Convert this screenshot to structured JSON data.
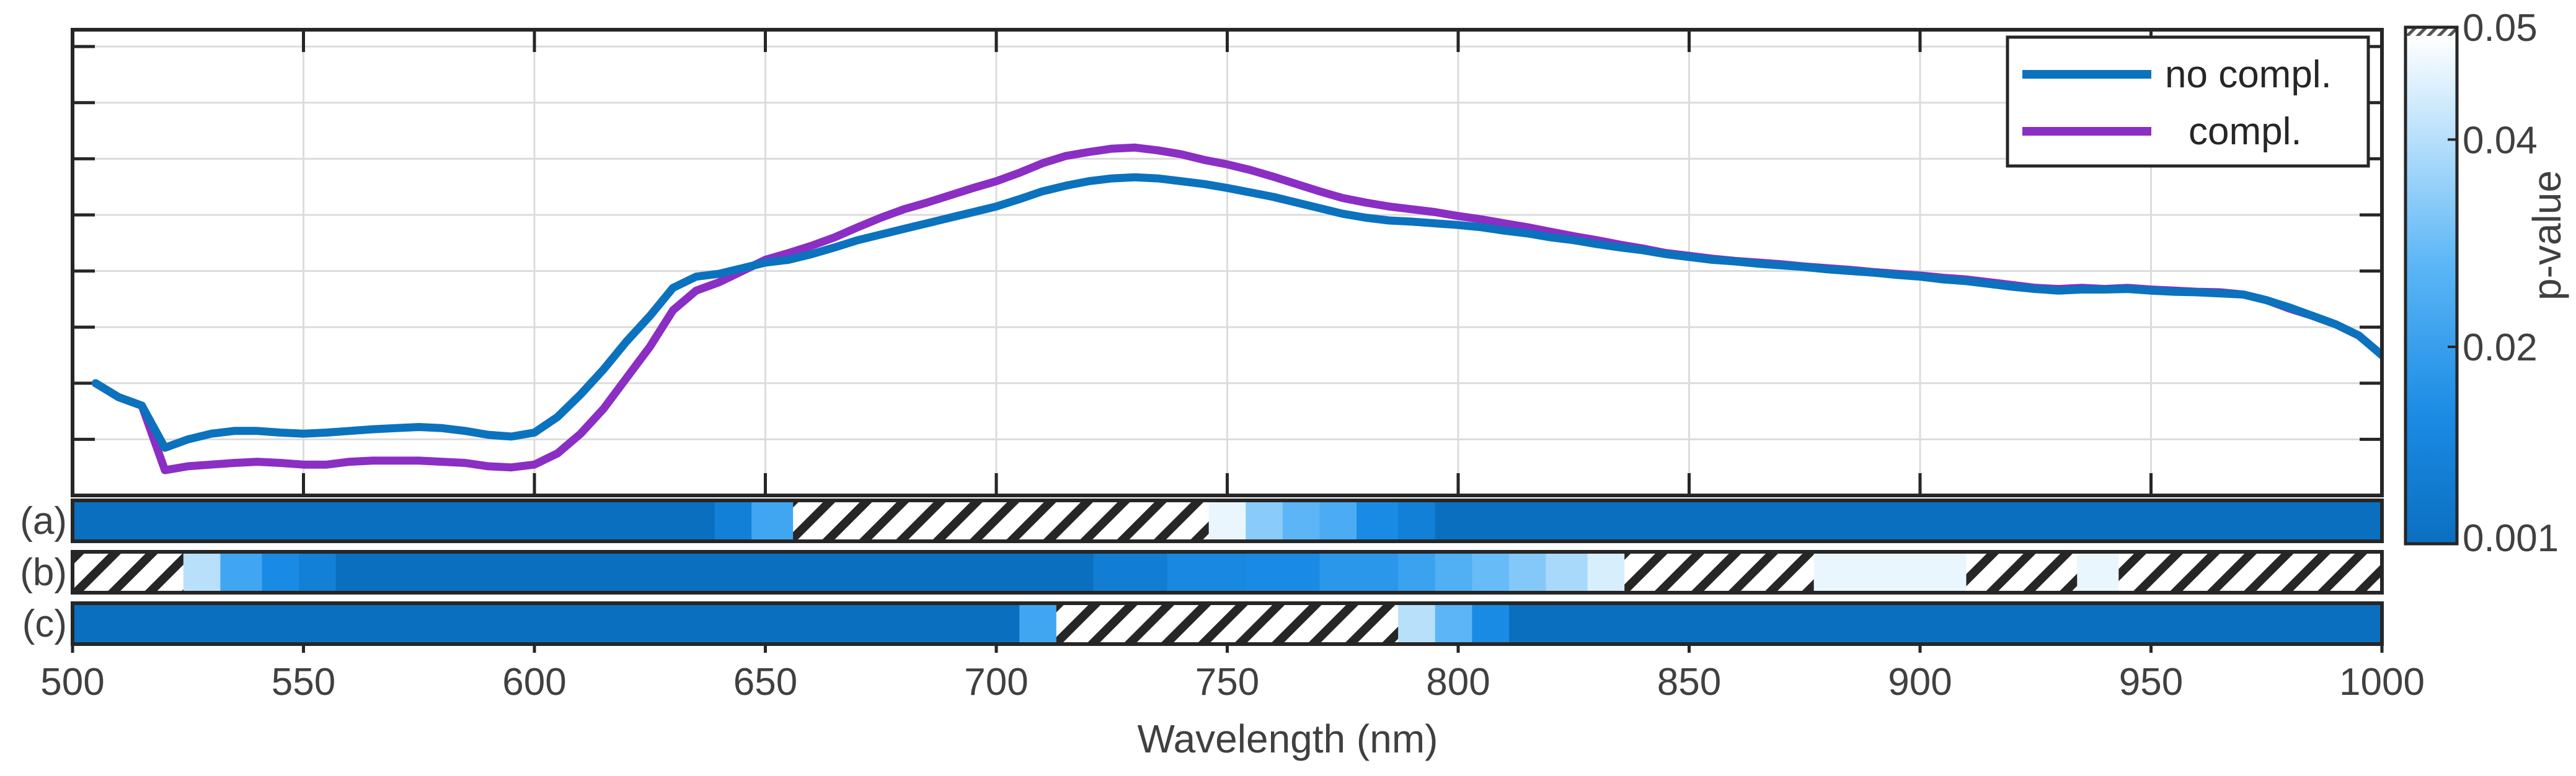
{
  "chart_data": {
    "type": "line",
    "title": "",
    "xlabel": "Wavelength (nm)",
    "ylabel": "",
    "xlim": [
      500,
      1000
    ],
    "ylim": [
      0,
      8.3
    ],
    "grid": true,
    "x_ticks": [
      "500",
      "550",
      "600",
      "650",
      "700",
      "750",
      "800",
      "850",
      "900",
      "950",
      "1000"
    ],
    "legend": {
      "position": "top-right",
      "entries": [
        {
          "label": "no compl.",
          "color": "#0b72bd"
        },
        {
          "label": "compl.",
          "color": "#8b2ec4"
        }
      ]
    },
    "series": [
      {
        "name": "no compl.",
        "color": "#0b72bd",
        "x": [
          505,
          510,
          515,
          520,
          525,
          530,
          535,
          540,
          545,
          550,
          555,
          560,
          565,
          570,
          575,
          580,
          585,
          590,
          595,
          600,
          605,
          610,
          615,
          620,
          625,
          630,
          635,
          640,
          645,
          650,
          655,
          660,
          665,
          670,
          675,
          680,
          685,
          690,
          695,
          700,
          705,
          710,
          715,
          720,
          725,
          730,
          735,
          740,
          745,
          750,
          755,
          760,
          765,
          770,
          775,
          780,
          785,
          790,
          795,
          800,
          805,
          810,
          815,
          820,
          825,
          830,
          835,
          840,
          845,
          850,
          855,
          860,
          865,
          870,
          875,
          880,
          885,
          890,
          895,
          900,
          905,
          910,
          915,
          920,
          925,
          930,
          935,
          940,
          945,
          950,
          955,
          960,
          965,
          970,
          975,
          980,
          985,
          990,
          995,
          1000
        ],
        "y": [
          2.0,
          1.75,
          1.6,
          0.85,
          1.0,
          1.1,
          1.15,
          1.15,
          1.12,
          1.1,
          1.12,
          1.15,
          1.18,
          1.2,
          1.22,
          1.2,
          1.15,
          1.08,
          1.05,
          1.12,
          1.4,
          1.8,
          2.25,
          2.75,
          3.2,
          3.7,
          3.9,
          3.95,
          4.05,
          4.15,
          4.2,
          4.3,
          4.42,
          4.55,
          4.65,
          4.75,
          4.85,
          4.95,
          5.05,
          5.15,
          5.28,
          5.42,
          5.52,
          5.6,
          5.65,
          5.67,
          5.65,
          5.6,
          5.55,
          5.48,
          5.4,
          5.32,
          5.22,
          5.12,
          5.02,
          4.95,
          4.9,
          4.88,
          4.85,
          4.82,
          4.78,
          4.72,
          4.67,
          4.6,
          4.55,
          4.48,
          4.42,
          4.37,
          4.3,
          4.25,
          4.2,
          4.17,
          4.13,
          4.1,
          4.07,
          4.03,
          4.0,
          3.97,
          3.93,
          3.9,
          3.85,
          3.82,
          3.77,
          3.72,
          3.68,
          3.65,
          3.67,
          3.67,
          3.68,
          3.65,
          3.63,
          3.62,
          3.6,
          3.58,
          3.48,
          3.35,
          3.2,
          3.05,
          2.85,
          2.5
        ]
      },
      {
        "name": "compl.",
        "color": "#8b2ec4",
        "x": [
          505,
          510,
          515,
          520,
          525,
          530,
          535,
          540,
          545,
          550,
          555,
          560,
          565,
          570,
          575,
          580,
          585,
          590,
          595,
          600,
          605,
          610,
          615,
          620,
          625,
          630,
          635,
          640,
          645,
          650,
          655,
          660,
          665,
          670,
          675,
          680,
          685,
          690,
          695,
          700,
          705,
          710,
          715,
          720,
          725,
          730,
          735,
          740,
          745,
          750,
          755,
          760,
          765,
          770,
          775,
          780,
          785,
          790,
          795,
          800,
          805,
          810,
          815,
          820,
          825,
          830,
          835,
          840,
          845,
          850,
          855,
          860,
          865,
          870,
          875,
          880,
          885,
          890,
          895,
          900,
          905,
          910,
          915,
          920,
          925,
          930,
          935,
          940,
          945,
          950,
          955,
          960,
          965,
          970,
          975,
          980,
          985,
          990,
          995,
          1000
        ],
        "y": [
          2.0,
          1.75,
          1.6,
          0.45,
          0.52,
          0.55,
          0.58,
          0.6,
          0.58,
          0.55,
          0.55,
          0.6,
          0.62,
          0.62,
          0.62,
          0.6,
          0.58,
          0.52,
          0.5,
          0.55,
          0.75,
          1.1,
          1.55,
          2.1,
          2.65,
          3.3,
          3.65,
          3.8,
          4.0,
          4.2,
          4.32,
          4.45,
          4.6,
          4.78,
          4.95,
          5.1,
          5.22,
          5.35,
          5.48,
          5.6,
          5.75,
          5.92,
          6.05,
          6.12,
          6.18,
          6.2,
          6.15,
          6.08,
          5.98,
          5.9,
          5.8,
          5.68,
          5.55,
          5.42,
          5.3,
          5.22,
          5.15,
          5.1,
          5.05,
          4.98,
          4.92,
          4.85,
          4.78,
          4.7,
          4.62,
          4.55,
          4.47,
          4.4,
          4.32,
          4.27,
          4.22,
          4.18,
          4.15,
          4.12,
          4.08,
          4.05,
          4.02,
          3.98,
          3.95,
          3.92,
          3.88,
          3.85,
          3.8,
          3.75,
          3.7,
          3.68,
          3.7,
          3.68,
          3.7,
          3.67,
          3.65,
          3.63,
          3.62,
          3.58,
          3.48,
          3.33,
          3.2,
          3.05,
          2.85,
          2.5
        ]
      }
    ],
    "significance_bars": [
      {
        "label": "(a)",
        "segments": [
          {
            "x0": 500,
            "x1": 639,
            "p": 0.001
          },
          {
            "x0": 639,
            "x1": 647,
            "p": 0.008
          },
          {
            "x0": 647,
            "x1": 656,
            "p": 0.022
          },
          {
            "x0": 656,
            "x1": 746,
            "p": "hatched"
          },
          {
            "x0": 746,
            "x1": 754,
            "p": 0.048
          },
          {
            "x0": 754,
            "x1": 762,
            "p": 0.034
          },
          {
            "x0": 762,
            "x1": 770,
            "p": 0.027
          },
          {
            "x0": 770,
            "x1": 778,
            "p": 0.024
          },
          {
            "x0": 778,
            "x1": 787,
            "p": 0.015
          },
          {
            "x0": 787,
            "x1": 795,
            "p": 0.008
          },
          {
            "x0": 795,
            "x1": 1000,
            "p": 0.001
          }
        ]
      },
      {
        "label": "(b)",
        "segments": [
          {
            "x0": 500,
            "x1": 524,
            "p": "hatched"
          },
          {
            "x0": 524,
            "x1": 532,
            "p": 0.04
          },
          {
            "x0": 532,
            "x1": 541,
            "p": 0.022
          },
          {
            "x0": 541,
            "x1": 549,
            "p": 0.015
          },
          {
            "x0": 549,
            "x1": 557,
            "p": 0.008
          },
          {
            "x0": 557,
            "x1": 721,
            "p": 0.001
          },
          {
            "x0": 721,
            "x1": 737,
            "p": 0.007
          },
          {
            "x0": 737,
            "x1": 754,
            "p": 0.013
          },
          {
            "x0": 754,
            "x1": 770,
            "p": 0.015
          },
          {
            "x0": 770,
            "x1": 787,
            "p": 0.018
          },
          {
            "x0": 787,
            "x1": 795,
            "p": 0.021
          },
          {
            "x0": 795,
            "x1": 803,
            "p": 0.025
          },
          {
            "x0": 803,
            "x1": 811,
            "p": 0.029
          },
          {
            "x0": 811,
            "x1": 819,
            "p": 0.033
          },
          {
            "x0": 819,
            "x1": 828,
            "p": 0.038
          },
          {
            "x0": 828,
            "x1": 836,
            "p": 0.045
          },
          {
            "x0": 836,
            "x1": 877,
            "p": "hatched"
          },
          {
            "x0": 877,
            "x1": 910,
            "p": 0.048
          },
          {
            "x0": 910,
            "x1": 934,
            "p": "hatched"
          },
          {
            "x0": 934,
            "x1": 943,
            "p": 0.048
          },
          {
            "x0": 943,
            "x1": 1000,
            "p": "hatched"
          }
        ]
      },
      {
        "label": "(c)",
        "segments": [
          {
            "x0": 500,
            "x1": 705,
            "p": 0.001
          },
          {
            "x0": 705,
            "x1": 713,
            "p": 0.022
          },
          {
            "x0": 713,
            "x1": 787,
            "p": "hatched"
          },
          {
            "x0": 787,
            "x1": 795,
            "p": 0.04
          },
          {
            "x0": 795,
            "x1": 803,
            "p": 0.027
          },
          {
            "x0": 803,
            "x1": 811,
            "p": 0.015
          },
          {
            "x0": 811,
            "x1": 1000,
            "p": 0.001
          }
        ]
      }
    ],
    "colorbar": {
      "label": "p-value",
      "range": [
        0.001,
        0.05
      ],
      "ticks": [
        "0.05",
        "0.04",
        "0.02",
        "0.001"
      ],
      "tick_values": [
        0.05,
        0.04,
        0.02,
        0.001
      ]
    }
  }
}
